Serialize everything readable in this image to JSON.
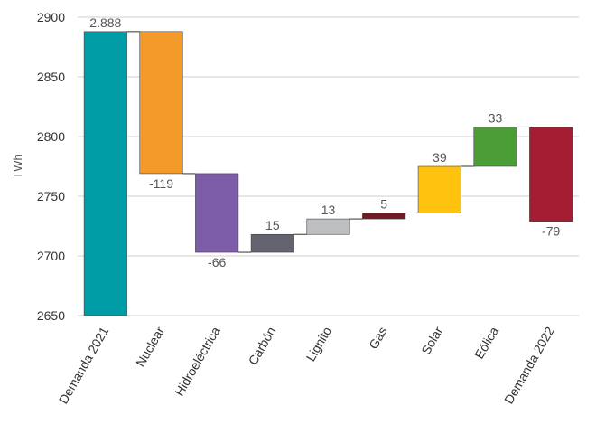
{
  "chart_data": {
    "type": "waterfall",
    "y_label": "TWh",
    "categories": [
      "Demanda 2021",
      "Nuclear",
      "Hidroeléctrica",
      "Carbón",
      "Lignito",
      "Gas",
      "Solar",
      "Eólica",
      "Demanda 2022"
    ],
    "values": [
      2888,
      -119,
      -66,
      15,
      13,
      5,
      39,
      33,
      -79
    ],
    "value_labels": [
      "2.888",
      "-119",
      "-66",
      "15",
      "13",
      "5",
      "39",
      "33",
      "-79"
    ],
    "colors": [
      "#009ca6",
      "#f39a2a",
      "#7d5ca8",
      "#62636f",
      "#bdbec2",
      "#6e1b24",
      "#ffc20e",
      "#4a9e35",
      "#a51d32"
    ],
    "ylim": [
      2650,
      2900
    ],
    "yticks": [
      2650,
      2700,
      2750,
      2800,
      2850,
      2900
    ],
    "grid": true
  }
}
